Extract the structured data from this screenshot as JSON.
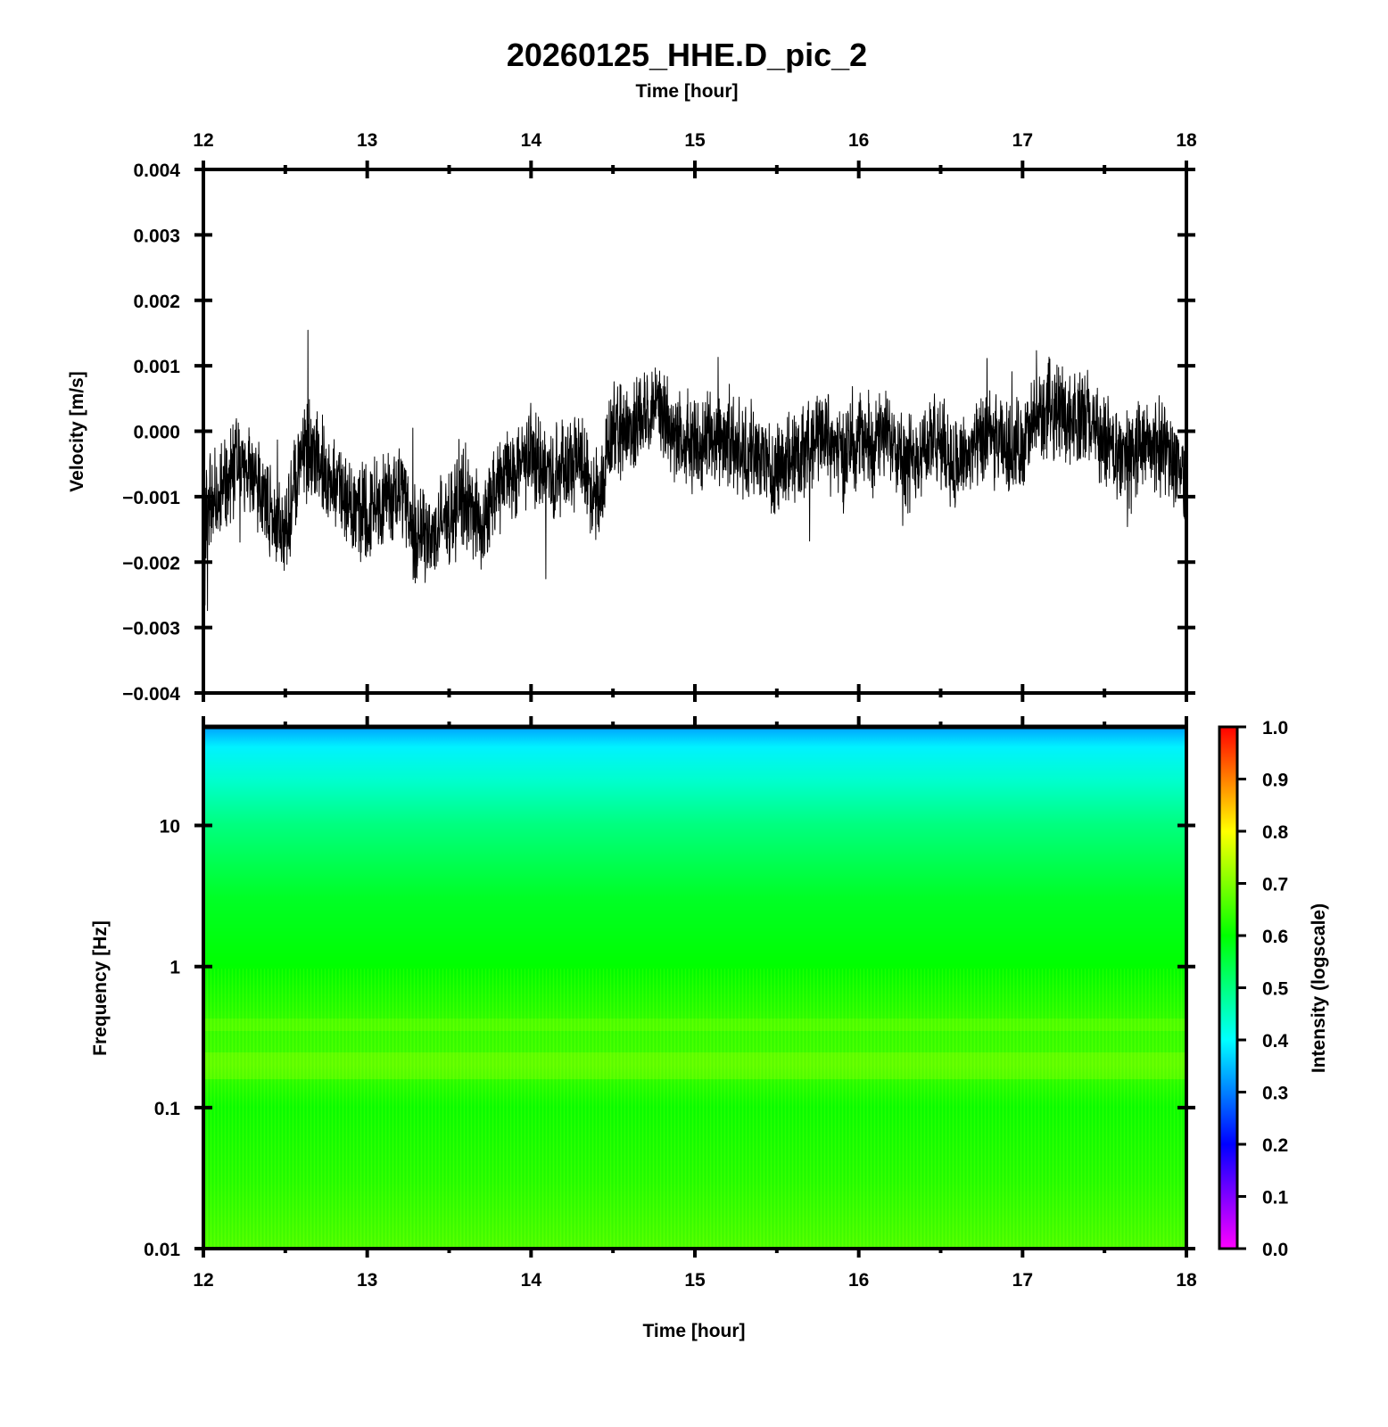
{
  "chart_data": [
    {
      "type": "line",
      "title": "20260125_HHE.D_pic_2",
      "xlabel": "Time [hour]",
      "ylabel": "Velocity [m/s]",
      "xlim": [
        12,
        18
      ],
      "ylim": [
        -0.004,
        0.004
      ],
      "xticks": [
        12,
        13,
        14,
        15,
        16,
        17,
        18
      ],
      "xtick_labels": [
        "12",
        "13",
        "14",
        "15",
        "16",
        "17",
        "18"
      ],
      "yticks": [
        0.004,
        0.003,
        0.002,
        0.001,
        0.0,
        -0.001,
        -0.002,
        -0.003,
        -0.004
      ],
      "ytick_labels": [
        "0.004",
        "0.003",
        "0.002",
        "0.001",
        "0.000",
        "−0.001",
        "−0.002",
        "−0.003",
        "−0.004"
      ],
      "grid": false,
      "line_color": "#000000",
      "series": [
        {
          "x": [
            12.0,
            12.1,
            12.2,
            12.3,
            12.4,
            12.5,
            12.6,
            12.7,
            12.8,
            12.9,
            13.0,
            13.1,
            13.2,
            13.3,
            13.4,
            13.5,
            13.6,
            13.7,
            13.8,
            13.9,
            14.0,
            14.1,
            14.2,
            14.3,
            14.4,
            14.5,
            14.6,
            14.7,
            14.8,
            14.9,
            15.0,
            15.1,
            15.2,
            15.3,
            15.4,
            15.5,
            15.6,
            15.7,
            15.8,
            15.9,
            16.0,
            16.1,
            16.2,
            16.3,
            16.4,
            16.5,
            16.6,
            16.7,
            16.8,
            16.9,
            17.0,
            17.1,
            17.2,
            17.3,
            17.4,
            17.5,
            17.6,
            17.7,
            17.8,
            17.9,
            18.0
          ],
          "y": [
            -0.0012,
            -0.0009,
            -0.0005,
            -0.0006,
            -0.0012,
            -0.0016,
            -0.0003,
            -0.0004,
            -0.0008,
            -0.0012,
            -0.0013,
            -0.001,
            -0.0009,
            -0.0017,
            -0.0016,
            -0.0013,
            -0.001,
            -0.0015,
            -0.0008,
            -0.0006,
            -0.0003,
            -0.0007,
            -0.0005,
            -0.0004,
            -0.001,
            0.0,
            0.0,
            0.0004,
            0.0002,
            -0.0001,
            -0.0002,
            -0.0001,
            -0.0001,
            -0.0003,
            -0.0004,
            -0.0006,
            -0.0004,
            -0.0002,
            0.0,
            -0.0004,
            -0.0001,
            -0.0002,
            0.0,
            -0.0005,
            -0.0002,
            -0.0002,
            -0.0005,
            -0.0003,
            -0.0001,
            -0.0003,
            -0.0002,
            0.0002,
            0.0004,
            0.0002,
            0.0002,
            -0.0002,
            -0.0004,
            -0.0003,
            -0.0002,
            -0.0003,
            -0.0008
          ]
        }
      ]
    },
    {
      "type": "heatmap",
      "xlabel": "Time [hour]",
      "ylabel": "Frequency [Hz]",
      "xlim": [
        12,
        18
      ],
      "ylim": [
        0.01,
        50
      ],
      "yscale": "log",
      "xticks": [
        12,
        13,
        14,
        15,
        16,
        17,
        18
      ],
      "xtick_labels": [
        "12",
        "13",
        "14",
        "15",
        "16",
        "17",
        "18"
      ],
      "yticks": [
        10,
        1,
        0.1,
        0.01
      ],
      "ytick_labels": [
        "10",
        "1",
        "0.1",
        "0.01"
      ],
      "colorbar": {
        "label": "Intensity (logscale)",
        "range": [
          0.0,
          1.0
        ],
        "ticks": [
          1.0,
          0.9,
          0.8,
          0.7,
          0.6,
          0.5,
          0.4,
          0.3,
          0.2,
          0.1,
          0.0
        ],
        "tick_labels": [
          "1.0",
          "0.9",
          "0.8",
          "0.7",
          "0.6",
          "0.5",
          "0.4",
          "0.3",
          "0.2",
          "0.1",
          "0.0"
        ],
        "colormap": [
          "#ff00ff",
          "#8000ff",
          "#0000ff",
          "#0080ff",
          "#00ffff",
          "#00ff80",
          "#00ff00",
          "#80ff00",
          "#ffff00",
          "#ff8000",
          "#ff0000"
        ]
      },
      "profile": {
        "frequency": [
          0.01,
          0.03,
          0.1,
          0.2,
          0.4,
          1,
          3,
          10,
          20,
          35,
          50
        ],
        "intensity": [
          0.66,
          0.63,
          0.61,
          0.65,
          0.64,
          0.6,
          0.57,
          0.5,
          0.44,
          0.39,
          0.32
        ]
      }
    }
  ]
}
